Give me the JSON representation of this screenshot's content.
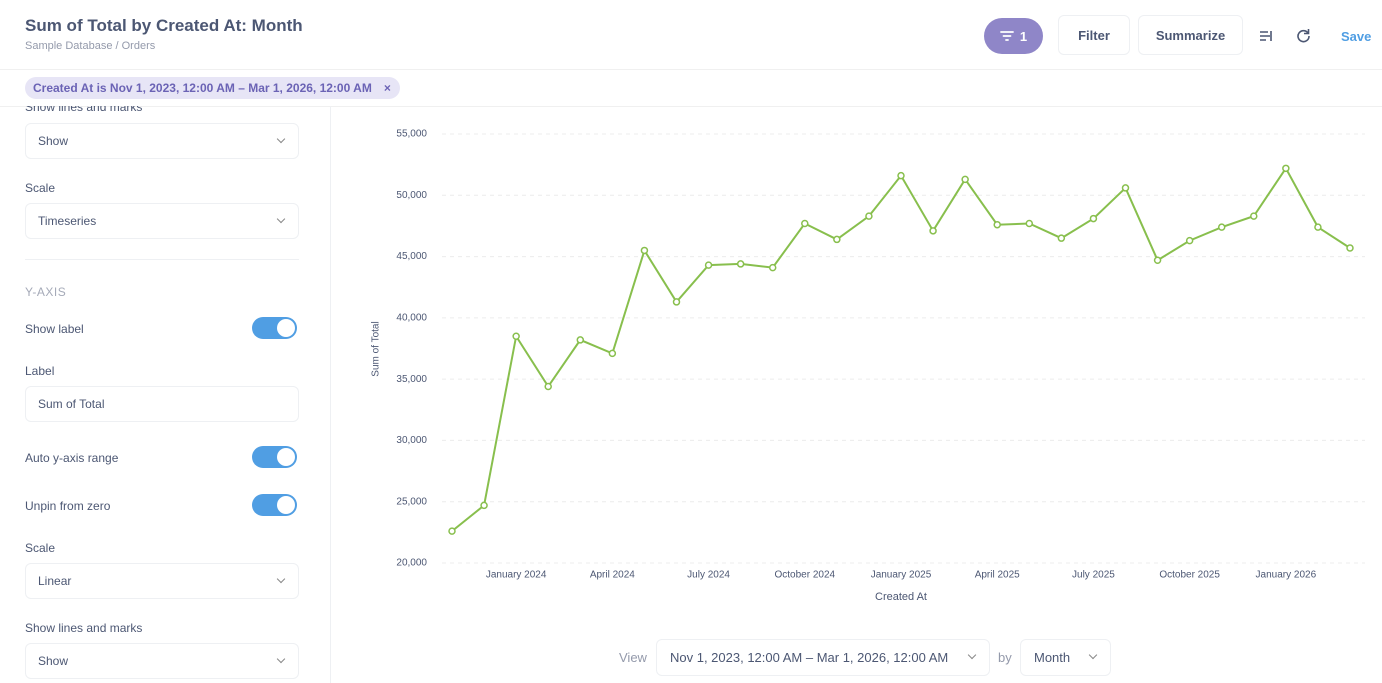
{
  "header": {
    "title": "Sum of Total by Created At: Month",
    "breadcrumb": "Sample Database  /  Orders",
    "filter_count": "1",
    "filter_button": "Filter",
    "summarize_button": "Summarize",
    "save": "Save"
  },
  "filter_chip": {
    "text": "Created At is Nov 1, 2023, 12:00 AM – Mar 1, 2026, 12:00 AM",
    "close": "×"
  },
  "sidebar": {
    "top_label": "Show lines and marks",
    "top_select": "Show",
    "scale_label": "Scale",
    "scale_select": "Timeseries",
    "section": "Y-AXIS",
    "show_label": {
      "label": "Show label",
      "on": true
    },
    "label_label": "Label",
    "label_input": "Sum of Total",
    "auto_range": {
      "label": "Auto y-axis range",
      "on": true
    },
    "unpin": {
      "label": "Unpin from zero",
      "on": true
    },
    "y_scale_label": "Scale",
    "y_scale_select": "Linear",
    "lines_label": "Show lines and marks",
    "lines_select": "Show"
  },
  "footer": {
    "view": "View",
    "range": "Nov 1, 2023, 12:00 AM – Mar 1, 2026, 12:00 AM",
    "by": "by",
    "unit": "Month"
  },
  "chart_data": {
    "type": "line",
    "x_label": "Created At",
    "y_label": "Sum of Total",
    "color": "#88bf4d",
    "grid": true,
    "x": [
      "2023-11",
      "2023-12",
      "2024-01",
      "2024-02",
      "2024-03",
      "2024-04",
      "2024-05",
      "2024-06",
      "2024-07",
      "2024-08",
      "2024-09",
      "2024-10",
      "2024-11",
      "2024-12",
      "2025-01",
      "2025-02",
      "2025-03",
      "2025-04",
      "2025-05",
      "2025-06",
      "2025-07",
      "2025-08",
      "2025-09",
      "2025-10",
      "2025-11",
      "2025-12",
      "2026-01",
      "2026-02",
      "2026-03"
    ],
    "values": [
      22600,
      24700,
      38500,
      34400,
      38200,
      37100,
      45500,
      41300,
      44300,
      44400,
      44100,
      47700,
      46400,
      48300,
      51600,
      47100,
      51300,
      47600,
      47700,
      46500,
      48100,
      50600,
      44700,
      46300,
      47400,
      48300,
      52200,
      47400,
      45700
    ],
    "xticks": [
      {
        "value": "2024-01",
        "label": "January 2024"
      },
      {
        "value": "2024-04",
        "label": "April 2024"
      },
      {
        "value": "2024-07",
        "label": "July 2024"
      },
      {
        "value": "2024-10",
        "label": "October 2024"
      },
      {
        "value": "2025-01",
        "label": "January 2025"
      },
      {
        "value": "2025-04",
        "label": "April 2025"
      },
      {
        "value": "2025-07",
        "label": "July 2025"
      },
      {
        "value": "2025-10",
        "label": "October 2025"
      },
      {
        "value": "2026-01",
        "label": "January 2026"
      }
    ],
    "ylim": [
      20000,
      55000
    ],
    "yticks": [
      {
        "value": 20000,
        "label": "20,000"
      },
      {
        "value": 25000,
        "label": "25,000"
      },
      {
        "value": 30000,
        "label": "30,000"
      },
      {
        "value": 35000,
        "label": "35,000"
      },
      {
        "value": 40000,
        "label": "40,000"
      },
      {
        "value": 45000,
        "label": "45,000"
      },
      {
        "value": 50000,
        "label": "50,000"
      },
      {
        "value": 55000,
        "label": "55,000"
      }
    ]
  }
}
